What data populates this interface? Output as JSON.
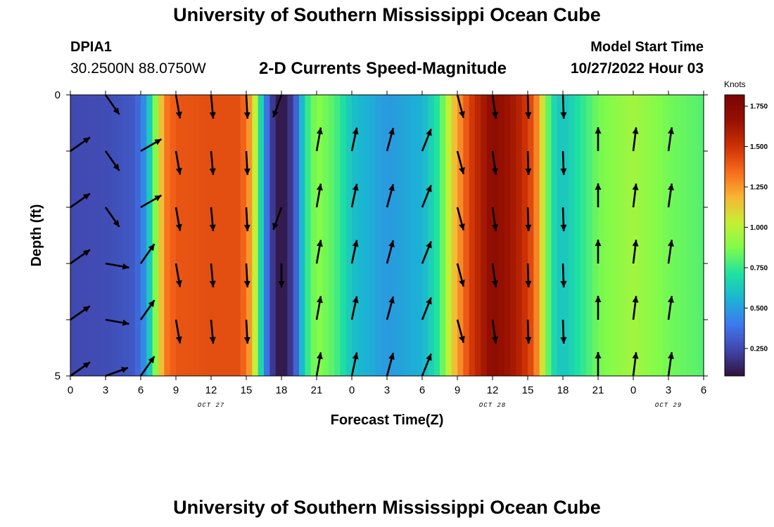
{
  "title": "University of Southern Mississippi Ocean Cube",
  "title_repeat": "University of Southern Mississippi Ocean Cube",
  "station": "DPIA1",
  "coordinates": "30.2500N  88.0750W",
  "subtitle": "2-D Currents Speed-Magnitude",
  "model_start_label": "Model Start Time",
  "model_start_value": "10/27/2022 Hour 03",
  "colorbar_units": "Knots",
  "chart_data": {
    "type": "heatmap",
    "xlabel": "Forecast Time(Z)",
    "ylabel": "Depth (ft)",
    "x_range_hours": [
      0,
      54
    ],
    "y_range": [
      0,
      5
    ],
    "x_ticks": [
      {
        "h": 0,
        "label": "0"
      },
      {
        "h": 3,
        "label": "3"
      },
      {
        "h": 6,
        "label": "6"
      },
      {
        "h": 9,
        "label": "9"
      },
      {
        "h": 12,
        "label": "12"
      },
      {
        "h": 15,
        "label": "15"
      },
      {
        "h": 18,
        "label": "18"
      },
      {
        "h": 21,
        "label": "21"
      },
      {
        "h": 24,
        "label": "0"
      },
      {
        "h": 27,
        "label": "3"
      },
      {
        "h": 30,
        "label": "6"
      },
      {
        "h": 33,
        "label": "9"
      },
      {
        "h": 36,
        "label": "12"
      },
      {
        "h": 39,
        "label": "15"
      },
      {
        "h": 42,
        "label": "18"
      },
      {
        "h": 45,
        "label": "21"
      },
      {
        "h": 48,
        "label": "0"
      },
      {
        "h": 51,
        "label": "3"
      },
      {
        "h": 54,
        "label": "6"
      }
    ],
    "date_labels": [
      {
        "h": 12,
        "label": "OCT 27"
      },
      {
        "h": 36,
        "label": "OCT 28"
      },
      {
        "h": 51,
        "label": "OCT 29"
      }
    ],
    "y_ticks": [
      {
        "v": 0,
        "label": "0"
      },
      {
        "v": 1,
        "label": ""
      },
      {
        "v": 2,
        "label": ""
      },
      {
        "v": 3,
        "label": ""
      },
      {
        "v": 4,
        "label": ""
      },
      {
        "v": 5,
        "label": "5"
      }
    ],
    "depth_levels": [
      0,
      1,
      2,
      3,
      4,
      5
    ],
    "speed_knots_by_hour": [
      {
        "h": 0,
        "v": 0.25
      },
      {
        "h": 3,
        "v": 0.26
      },
      {
        "h": 5.5,
        "v": 0.3
      },
      {
        "h": 6.3,
        "v": 0.45
      },
      {
        "h": 6.8,
        "v": 0.65
      },
      {
        "h": 7.3,
        "v": 0.9
      },
      {
        "h": 8,
        "v": 1.3
      },
      {
        "h": 9,
        "v": 1.4
      },
      {
        "h": 12,
        "v": 1.42
      },
      {
        "h": 14.5,
        "v": 1.42
      },
      {
        "h": 15.5,
        "v": 1.2
      },
      {
        "h": 16.2,
        "v": 0.7
      },
      {
        "h": 16.8,
        "v": 0.35
      },
      {
        "h": 17.4,
        "v": 0.15
      },
      {
        "h": 18,
        "v": 0.08
      },
      {
        "h": 18.6,
        "v": 0.15
      },
      {
        "h": 19.3,
        "v": 0.35
      },
      {
        "h": 20,
        "v": 0.7
      },
      {
        "h": 21,
        "v": 0.9
      },
      {
        "h": 22.5,
        "v": 0.8
      },
      {
        "h": 24,
        "v": 0.6
      },
      {
        "h": 27,
        "v": 0.48
      },
      {
        "h": 30,
        "v": 0.55
      },
      {
        "h": 31.5,
        "v": 0.75
      },
      {
        "h": 32.5,
        "v": 1.1
      },
      {
        "h": 34,
        "v": 1.45
      },
      {
        "h": 36,
        "v": 1.72
      },
      {
        "h": 38,
        "v": 1.6
      },
      {
        "h": 39.5,
        "v": 1.4
      },
      {
        "h": 40.3,
        "v": 1.05
      },
      {
        "h": 41,
        "v": 0.7
      },
      {
        "h": 42,
        "v": 0.6
      },
      {
        "h": 45,
        "v": 0.85
      },
      {
        "h": 48,
        "v": 0.95
      },
      {
        "h": 51,
        "v": 0.85
      },
      {
        "h": 54,
        "v": 0.8
      }
    ],
    "vectors": [
      {
        "h": 0,
        "levels": [
          1,
          2,
          3,
          4,
          5
        ],
        "angle": 55
      },
      {
        "h": 3,
        "levels": [
          0,
          1,
          2
        ],
        "angle": 145
      },
      {
        "h": 3,
        "levels": [
          3,
          4
        ],
        "angle": 100
      },
      {
        "h": 3,
        "levels": [
          5
        ],
        "angle": 70
      },
      {
        "h": 6,
        "levels": [
          1,
          2
        ],
        "angle": 60
      },
      {
        "h": 6,
        "levels": [
          3,
          4,
          5
        ],
        "angle": 35
      },
      {
        "h": 9,
        "levels": [
          0,
          1,
          2,
          3,
          4
        ],
        "angle": 170
      },
      {
        "h": 12,
        "levels": [
          0,
          1,
          2,
          3,
          4
        ],
        "angle": 175
      },
      {
        "h": 15,
        "levels": [
          0,
          1,
          2,
          3,
          4
        ],
        "angle": 177
      },
      {
        "h": 18,
        "levels": [
          0,
          2
        ],
        "angle": 200
      },
      {
        "h": 18,
        "levels": [
          3
        ],
        "angle": 180
      },
      {
        "h": 21,
        "levels": [
          1,
          2,
          3,
          4,
          5
        ],
        "angle": 10
      },
      {
        "h": 24,
        "levels": [
          1,
          2,
          3,
          4,
          5
        ],
        "angle": 12
      },
      {
        "h": 27,
        "levels": [
          1,
          2,
          3,
          4,
          5
        ],
        "angle": 15
      },
      {
        "h": 30,
        "levels": [
          1,
          2,
          3,
          4,
          5
        ],
        "angle": 22
      },
      {
        "h": 33,
        "levels": [
          0,
          1,
          2,
          3,
          4
        ],
        "angle": 165
      },
      {
        "h": 36,
        "levels": [
          0,
          1,
          2,
          3,
          4
        ],
        "angle": 172
      },
      {
        "h": 39,
        "levels": [
          0,
          1,
          2,
          3,
          4
        ],
        "angle": 178
      },
      {
        "h": 42,
        "levels": [
          0,
          1,
          2,
          3,
          4
        ],
        "angle": 178
      },
      {
        "h": 45,
        "levels": [
          1,
          2,
          3,
          4,
          5
        ],
        "angle": 0
      },
      {
        "h": 48,
        "levels": [
          1,
          2,
          3,
          4,
          5
        ],
        "angle": 7
      },
      {
        "h": 51,
        "levels": [
          1,
          2,
          3,
          4,
          5
        ],
        "angle": 8
      }
    ],
    "colorbar": {
      "range": [
        0.08,
        1.82
      ],
      "ticks": [
        {
          "v": 0.25,
          "label": "0.250"
        },
        {
          "v": 0.5,
          "label": "0.500"
        },
        {
          "v": 0.75,
          "label": "0.750"
        },
        {
          "v": 1.0,
          "label": "1.000"
        },
        {
          "v": 1.25,
          "label": "1.250"
        },
        {
          "v": 1.5,
          "label": "1.500"
        },
        {
          "v": 1.75,
          "label": "1.750"
        }
      ],
      "colors": [
        "#30123b",
        "#4145ab",
        "#3e78ee",
        "#1ab4d4",
        "#1fe2a0",
        "#7ffb4b",
        "#c5f034",
        "#f8b534",
        "#f86a1c",
        "#cb3004",
        "#961002",
        "#7a0403"
      ]
    }
  }
}
